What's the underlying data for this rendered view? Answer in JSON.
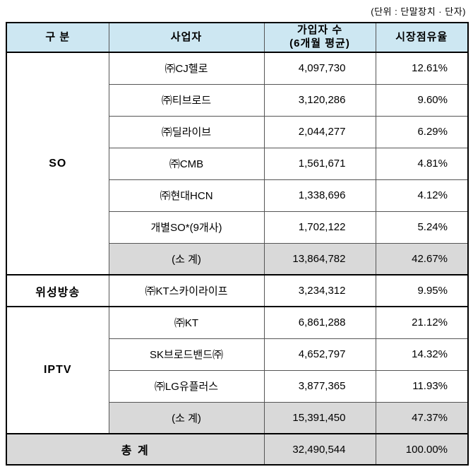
{
  "unit_note": "(단위 : 단말장치 · 단자)",
  "colors": {
    "header_bg": "#cde7f2",
    "subtotal_bg": "#d9d9d9"
  },
  "table": {
    "headers": [
      "구 분",
      "사업자",
      "가입자 수\n(6개월 평균)",
      "시장점유율"
    ],
    "groups": [
      {
        "name": "SO",
        "rows": [
          {
            "operator": "㈜CJ헬로",
            "subscribers": "4,097,730",
            "share": "12.61%",
            "subtotal": false
          },
          {
            "operator": "㈜티브로드",
            "subscribers": "3,120,286",
            "share": "9.60%",
            "subtotal": false
          },
          {
            "operator": "㈜딜라이브",
            "subscribers": "2,044,277",
            "share": "6.29%",
            "subtotal": false
          },
          {
            "operator": "㈜CMB",
            "subscribers": "1,561,671",
            "share": "4.81%",
            "subtotal": false
          },
          {
            "operator": "㈜현대HCN",
            "subscribers": "1,338,696",
            "share": "4.12%",
            "subtotal": false
          },
          {
            "operator": "개별SO*(9개사)",
            "subscribers": "1,702,122",
            "share": "5.24%",
            "subtotal": false
          },
          {
            "operator": "(소 계)",
            "subscribers": "13,864,782",
            "share": "42.67%",
            "subtotal": true
          }
        ]
      },
      {
        "name": "위성방송",
        "rows": [
          {
            "operator": "㈜KT스카이라이프",
            "subscribers": "3,234,312",
            "share": "9.95%",
            "subtotal": false
          }
        ]
      },
      {
        "name": "IPTV",
        "rows": [
          {
            "operator": "㈜KT",
            "subscribers": "6,861,288",
            "share": "21.12%",
            "subtotal": false
          },
          {
            "operator": "SK브로드밴드㈜",
            "subscribers": "4,652,797",
            "share": "14.32%",
            "subtotal": false
          },
          {
            "operator": "㈜LG유플러스",
            "subscribers": "3,877,365",
            "share": "11.93%",
            "subtotal": false
          },
          {
            "operator": "(소 계)",
            "subscribers": "15,391,450",
            "share": "47.37%",
            "subtotal": true
          }
        ]
      }
    ],
    "total": {
      "label": "총 계",
      "subscribers": "32,490,544",
      "share": "100.00%"
    }
  }
}
